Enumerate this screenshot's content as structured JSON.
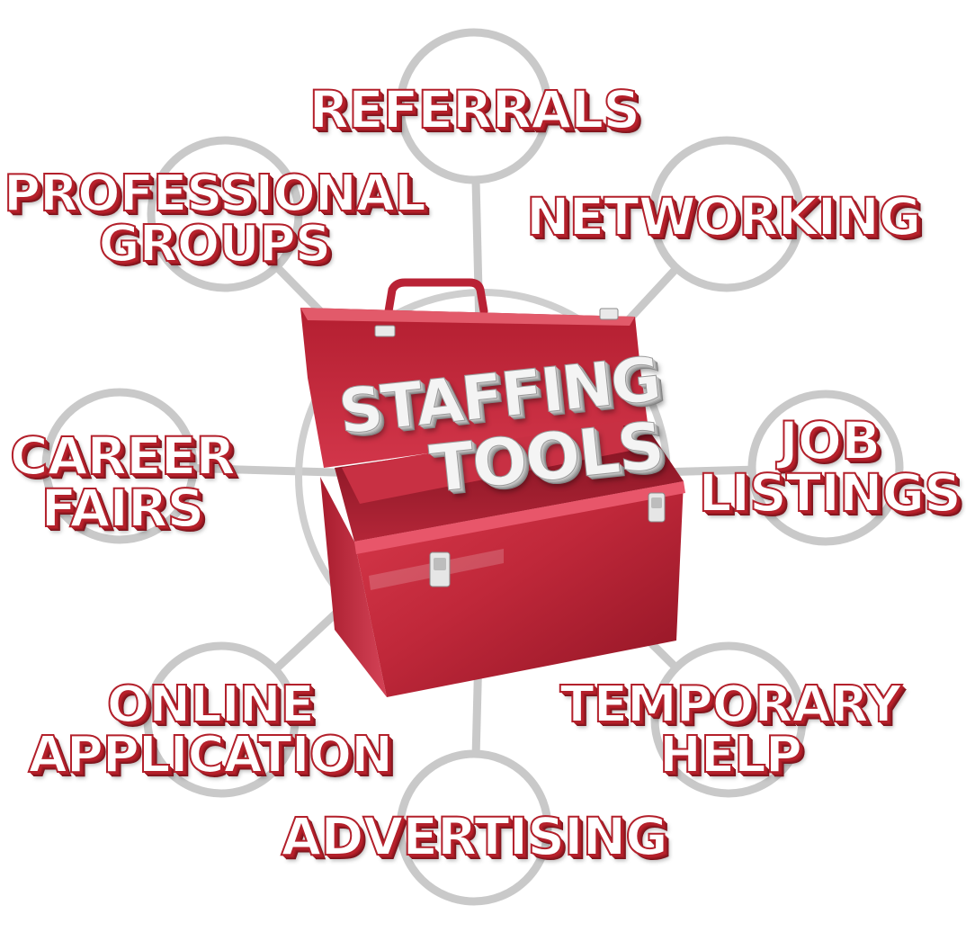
{
  "diagram": {
    "center": {
      "label_lines": [
        "STAFFING",
        "TOOLS"
      ],
      "object": "red-toolbox-icon"
    },
    "nodes": [
      {
        "id": "referrals",
        "lines": [
          "REFERRALS"
        ]
      },
      {
        "id": "networking",
        "lines": [
          "NETWORKING"
        ]
      },
      {
        "id": "job-listings",
        "lines": [
          "JOB",
          "LISTINGS"
        ]
      },
      {
        "id": "temporary-help",
        "lines": [
          "TEMPORARY",
          "HELP"
        ]
      },
      {
        "id": "advertising",
        "lines": [
          "ADVERTISING"
        ]
      },
      {
        "id": "online-application",
        "lines": [
          "ONLINE",
          "APPLICATION"
        ]
      },
      {
        "id": "career-fairs",
        "lines": [
          "CAREER",
          "FAIRS"
        ]
      },
      {
        "id": "professional-groups",
        "lines": [
          "PROFESSIONAL",
          "GROUPS"
        ]
      }
    ],
    "colors": {
      "connector": "#c9c9c9",
      "toolbox_red": "#c0283a",
      "toolbox_dark": "#8f1424",
      "label_red": "#b3202b",
      "background": "#ffffff"
    }
  }
}
